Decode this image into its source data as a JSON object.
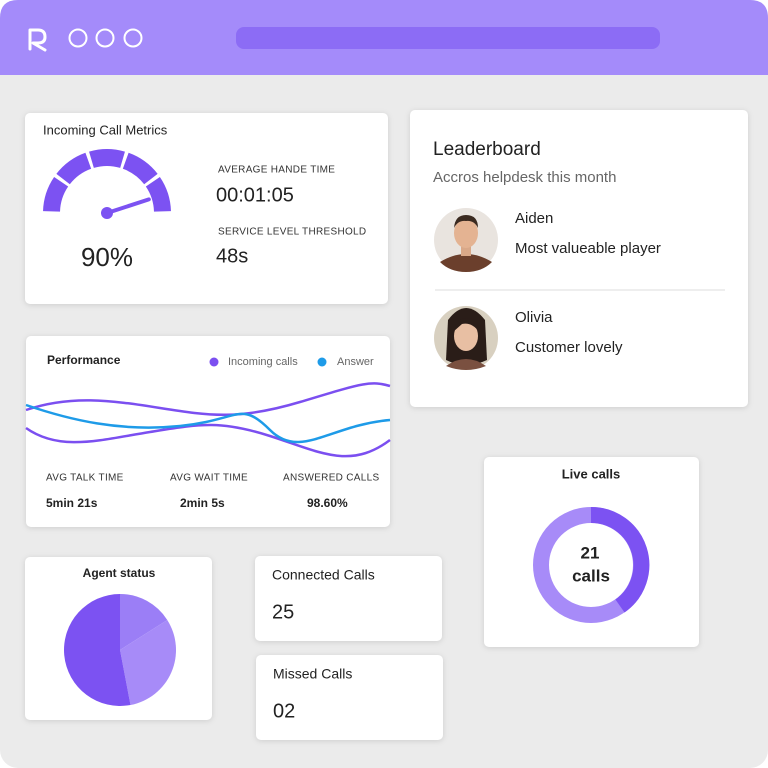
{
  "call_metrics": {
    "title": "Incoming Call Metrics",
    "gauge": {
      "value": 90,
      "label": "90%"
    },
    "stats": [
      {
        "label": "AVERAGE HANDE TIME",
        "value": "00:01:05"
      },
      {
        "label": "SERVICE LEVEL THRESHOLD",
        "value": "48s"
      }
    ]
  },
  "leaderboard": {
    "title": "Leaderboard",
    "subtitle": "Accros helpdesk this month",
    "entries": [
      {
        "name": "Aiden",
        "note": "Most valueable player"
      },
      {
        "name": "Olivia",
        "note": "Customer lovely"
      }
    ]
  },
  "performance": {
    "title": "Performance",
    "legend": [
      {
        "name": "Incoming calls",
        "color": "#7b4ff0"
      },
      {
        "name": "Answer",
        "color": "#1e9be8"
      }
    ],
    "stats": [
      {
        "label": "AVG TALK TIME",
        "value": "5min 21s"
      },
      {
        "label": "AVG WAIT TIME",
        "value": "2min 5s"
      },
      {
        "label": "ANSWERED CALLS",
        "value": "98.60%"
      }
    ]
  },
  "live_calls": {
    "title": "Live calls",
    "count": 21,
    "unit": "calls"
  },
  "agent_status": {
    "title": "Agent status",
    "type": "pie",
    "values": [
      16,
      31,
      53
    ],
    "colors": [
      "#9b7ef6",
      "#a78bf8",
      "#7c52f2"
    ]
  },
  "connected_calls": {
    "title": "Connected Calls",
    "value": 25
  },
  "missed_calls": {
    "title": "Missed Calls",
    "value": "02"
  }
}
